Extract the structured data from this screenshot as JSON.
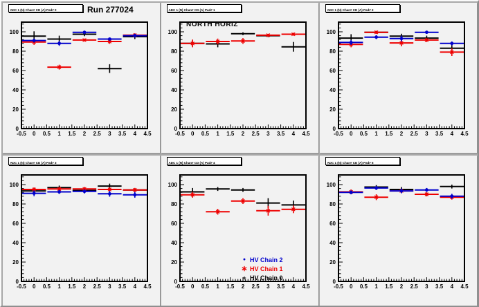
{
  "header": {
    "run_label": "Run 277024"
  },
  "colors": {
    "chain2": "#0000cc",
    "chain1": "#ee0000",
    "chain0": "#000000",
    "pad_background": "#f2f2f2",
    "canvas_gutter": "#a8a8a8",
    "frame": "#000000"
  },
  "axes": {
    "x_range": [
      -0.5,
      4.5
    ],
    "y_range": [
      0,
      110
    ],
    "x_major": 0.5,
    "x_minor": 0.1,
    "y_major": 20,
    "y_minor": 4,
    "x_ticks": [
      -0.5,
      0,
      0.5,
      1,
      1.5,
      2,
      2.5,
      3,
      3.5,
      4,
      4.5
    ],
    "x_tick_labels": [
      "-0.5",
      "0",
      "0.5",
      "1",
      "1.5",
      "2",
      "2.5",
      "3",
      "3.5",
      "4",
      "4.5"
    ],
    "y_ticks": [
      0,
      20,
      40,
      60,
      80,
      100
    ],
    "y_tick_labels": [
      "0",
      "20",
      "40",
      "60",
      "80",
      "100"
    ],
    "grid": false
  },
  "legend": {
    "position": "bottom-middle-panel",
    "items": [
      {
        "label": "HV Chain 2",
        "color": "#0000cc",
        "marker": "dot",
        "glyph": "●"
      },
      {
        "label": "HV Chain 1",
        "color": "#ee0000",
        "marker": "star",
        "glyph": "∗"
      },
      {
        "label": "HV Chain 0",
        "color": "#000000",
        "marker": "cross",
        "glyph": "+"
      }
    ]
  },
  "chart_data": [
    {
      "type": "scatter",
      "title": "ADC 1 (N) Chan# CD (A) Pad# 0",
      "header_label": "Run 277024",
      "x": [
        0,
        1,
        2,
        3,
        4
      ],
      "xerr": 0.5,
      "xlim": [
        -0.5,
        4.5
      ],
      "ylim": [
        0,
        110
      ],
      "series": [
        {
          "name": "HV Chain 2",
          "color": "#0000cc",
          "marker": "dot",
          "values": [
            91,
            88,
            99.5,
            92.5,
            96
          ],
          "yerr": [
            2,
            2.5,
            1.5,
            1.5,
            2
          ]
        },
        {
          "name": "HV Chain 1",
          "color": "#ee0000",
          "marker": "star",
          "values": [
            89.5,
            63.5,
            91.5,
            90,
            96.5
          ],
          "yerr": [
            3,
            2.5,
            1.5,
            2.5,
            2
          ]
        },
        {
          "name": "HV Chain 0",
          "color": "#000000",
          "marker": "cross",
          "values": [
            95.5,
            92.5,
            97.5,
            62,
            95
          ],
          "yerr": [
            5,
            3.5,
            2,
            4.5,
            2.5
          ]
        }
      ]
    },
    {
      "type": "scatter",
      "title": "ADC 1 (N) Chan# CD (A) Pad# 1",
      "annotation": "NORTH HORIZ",
      "x": [
        0,
        1,
        2,
        3,
        4
      ],
      "xerr": 0.5,
      "xlim": [
        -0.5,
        4.5
      ],
      "ylim": [
        0,
        110
      ],
      "series": [
        {
          "name": "HV Chain 1",
          "color": "#ee0000",
          "marker": "star",
          "values": [
            88,
            90,
            90.5,
            96.5,
            97.5
          ],
          "yerr": [
            4,
            3,
            3,
            1.5,
            1.5
          ]
        },
        {
          "name": "HV Chain 0",
          "color": "#000000",
          "marker": "cross",
          "values": [
            88,
            87.5,
            98,
            96,
            84.5
          ],
          "yerr": [
            3.5,
            3.5,
            1.5,
            1.5,
            5
          ]
        }
      ]
    },
    {
      "type": "scatter",
      "title": "ADC 1 (N) Chan# CD (A) Pad# 2",
      "x": [
        0,
        1,
        2,
        3,
        4
      ],
      "xerr": 0.5,
      "xlim": [
        -0.5,
        4.5
      ],
      "ylim": [
        0,
        110
      ],
      "series": [
        {
          "name": "HV Chain 2",
          "color": "#0000cc",
          "marker": "dot",
          "values": [
            89,
            94.5,
            93,
            99.5,
            88
          ],
          "yerr": [
            2.5,
            2,
            3,
            1.5,
            2
          ]
        },
        {
          "name": "HV Chain 1",
          "color": "#ee0000",
          "marker": "star",
          "values": [
            87,
            99.5,
            88.5,
            91.5,
            79
          ],
          "yerr": [
            3,
            1.5,
            3.5,
            2,
            4
          ]
        },
        {
          "name": "HV Chain 0",
          "color": "#000000",
          "marker": "cross",
          "values": [
            93.5,
            99.5,
            95.5,
            93.5,
            83
          ],
          "yerr": [
            4,
            1.5,
            2.5,
            2.5,
            3.5
          ]
        }
      ]
    },
    {
      "type": "scatter",
      "title": "ADC 1 (N) Chan# CD (A) Pad# 3",
      "x": [
        0,
        1,
        2,
        3,
        4
      ],
      "xerr": 0.5,
      "xlim": [
        -0.5,
        4.5
      ],
      "ylim": [
        0,
        110
      ],
      "series": [
        {
          "name": "HV Chain 2",
          "color": "#0000cc",
          "marker": "dot",
          "values": [
            91,
            92.5,
            93,
            90.5,
            89.5
          ],
          "yerr": [
            3,
            2,
            2,
            3,
            3
          ]
        },
        {
          "name": "HV Chain 1",
          "color": "#ee0000",
          "marker": "star",
          "values": [
            95,
            95.5,
            95.5,
            95,
            94.5
          ],
          "yerr": [
            2,
            2,
            2,
            2,
            2
          ]
        },
        {
          "name": "HV Chain 0",
          "color": "#000000",
          "marker": "cross",
          "values": [
            93.5,
            97,
            94,
            98.5,
            94.5
          ],
          "yerr": [
            3.5,
            2,
            3,
            2.5,
            2
          ]
        }
      ]
    },
    {
      "type": "scatter",
      "title": "ADC 1 (N) Chan# CD (A) Pad# 4",
      "has_legend": true,
      "x": [
        0,
        1,
        2,
        3,
        4
      ],
      "xerr": 0.5,
      "xlim": [
        -0.5,
        4.5
      ],
      "ylim": [
        0,
        110
      ],
      "series": [
        {
          "name": "HV Chain 1",
          "color": "#ee0000",
          "marker": "star",
          "values": [
            89.5,
            72,
            83,
            73,
            74.5
          ],
          "yerr": [
            3,
            3,
            3,
            5,
            4
          ]
        },
        {
          "name": "HV Chain 0",
          "color": "#000000",
          "marker": "cross",
          "values": [
            92.5,
            95.5,
            94.5,
            81,
            79
          ],
          "yerr": [
            4,
            2,
            2,
            5,
            4.5
          ]
        }
      ]
    },
    {
      "type": "scatter",
      "title": "ADC 1 (N) Chan# CD (A) Pad# 5",
      "x": [
        0,
        1,
        2,
        3,
        4
      ],
      "xerr": 0.5,
      "xlim": [
        -0.5,
        4.5
      ],
      "ylim": [
        0,
        110
      ],
      "series": [
        {
          "name": "HV Chain 2",
          "color": "#0000cc",
          "marker": "dot",
          "values": [
            92,
            96.5,
            93.5,
            94.5,
            88
          ],
          "yerr": [
            2,
            2,
            2.5,
            2,
            2.5
          ]
        },
        {
          "name": "HV Chain 1",
          "color": "#ee0000",
          "marker": "star",
          "values": [
            92.5,
            87,
            93.5,
            90,
            87
          ],
          "yerr": [
            2.5,
            3,
            2,
            2,
            2.5
          ]
        },
        {
          "name": "HV Chain 0",
          "color": "#000000",
          "marker": "cross",
          "values": [
            92.5,
            97.5,
            95,
            90,
            98
          ],
          "yerr": [
            2.5,
            2,
            2.5,
            2,
            2
          ]
        }
      ]
    }
  ]
}
